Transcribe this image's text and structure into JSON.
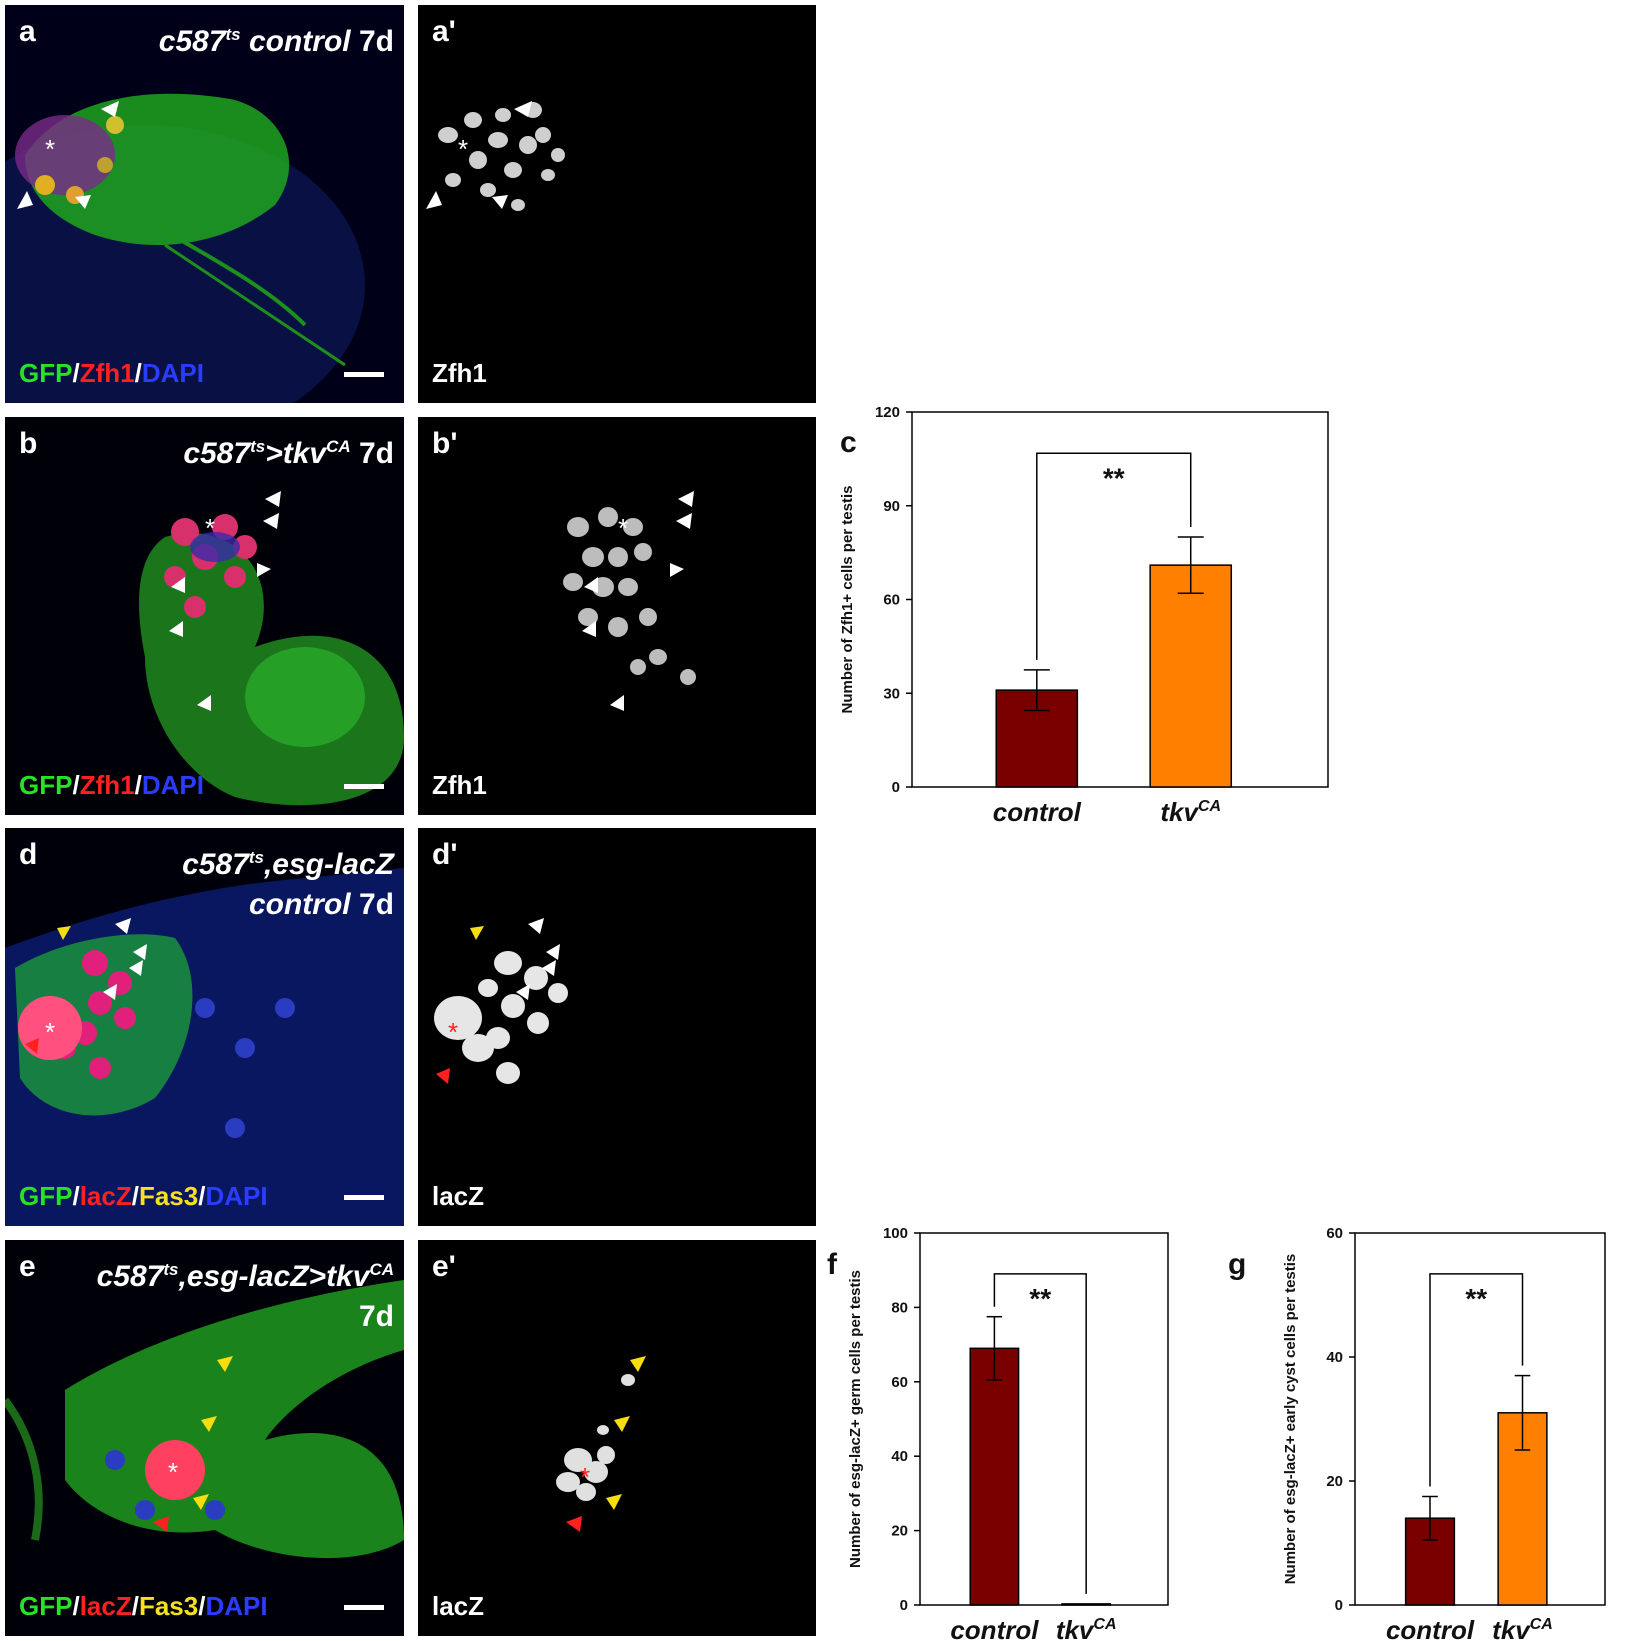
{
  "panels": {
    "a": {
      "label": "a",
      "title_italic": "c587",
      "title_sup": "ts",
      "title_rest_italic": " control",
      "title_rest": " 7d",
      "stain": [
        {
          "t": "GFP",
          "c": "g"
        },
        {
          "t": "/",
          "c": "w"
        },
        {
          "t": "Zfh1",
          "c": "r"
        },
        {
          "t": "/",
          "c": "w"
        },
        {
          "t": "DAPI",
          "c": "b"
        }
      ]
    },
    "a2": {
      "label": "a'",
      "stain": [
        {
          "t": "Zfh1",
          "c": "w"
        }
      ]
    },
    "b": {
      "label": "b",
      "title_italic": "c587",
      "title_sup": "ts",
      "title_rest_italic": ">tkv",
      "title_sup2": "CA",
      "title_rest": " 7d",
      "stain": [
        {
          "t": "GFP",
          "c": "g"
        },
        {
          "t": "/",
          "c": "w"
        },
        {
          "t": "Zfh1",
          "c": "r"
        },
        {
          "t": "/",
          "c": "w"
        },
        {
          "t": "DAPI",
          "c": "b"
        }
      ]
    },
    "b2": {
      "label": "b'",
      "stain": [
        {
          "t": "Zfh1",
          "c": "w"
        }
      ]
    },
    "d": {
      "label": "d",
      "title_line1": "c587",
      "title_sup": "ts",
      "title_line1b": ",esg-lacZ",
      "title_line2": "control",
      "title_line2b": " 7d",
      "stain": [
        {
          "t": "GFP",
          "c": "g"
        },
        {
          "t": "/",
          "c": "w"
        },
        {
          "t": "lacZ",
          "c": "r"
        },
        {
          "t": "/",
          "c": "w"
        },
        {
          "t": "Fas3",
          "c": "y"
        },
        {
          "t": "/",
          "c": "w"
        },
        {
          "t": "DAPI",
          "c": "b"
        }
      ]
    },
    "d2": {
      "label": "d'",
      "stain": [
        {
          "t": "lacZ",
          "c": "w"
        }
      ]
    },
    "e": {
      "label": "e",
      "title_line1": "c587",
      "title_sup": "ts",
      "title_line1b": ",esg-lacZ>tkv",
      "title_sup2": "CA",
      "title_line2b": "7d",
      "stain": [
        {
          "t": "GFP",
          "c": "g"
        },
        {
          "t": "/",
          "c": "w"
        },
        {
          "t": "lacZ",
          "c": "r"
        },
        {
          "t": "/",
          "c": "w"
        },
        {
          "t": "Fas3",
          "c": "y"
        },
        {
          "t": "/",
          "c": "w"
        },
        {
          "t": "DAPI",
          "c": "b"
        }
      ]
    },
    "e2": {
      "label": "e'",
      "stain": [
        {
          "t": "lacZ",
          "c": "w"
        }
      ]
    }
  },
  "chart_data": [
    {
      "id": "c",
      "panel_label": "c",
      "type": "bar",
      "categories": [
        "control",
        "tkv"
      ],
      "category_sup": [
        "",
        "CA"
      ],
      "values": [
        31,
        71
      ],
      "errors": [
        6.5,
        9
      ],
      "ylabel": "Number of Zfh1+ cells per testis",
      "ylim": [
        0,
        120
      ],
      "yticks": [
        0,
        30,
        60,
        90,
        120
      ],
      "significance": "**",
      "colors": [
        "#7a0000",
        "#ff8000"
      ]
    },
    {
      "id": "f",
      "panel_label": "f",
      "type": "bar",
      "categories": [
        "control",
        "tkv"
      ],
      "category_sup": [
        "",
        "CA"
      ],
      "values": [
        69,
        0.3
      ],
      "errors": [
        8.5,
        0
      ],
      "ylabel": "Number of esg-lacZ+ germ cells per testis",
      "ylim": [
        0,
        100
      ],
      "yticks": [
        0,
        20,
        40,
        60,
        80,
        100
      ],
      "significance": "**",
      "colors": [
        "#7a0000",
        "#ff8000"
      ]
    },
    {
      "id": "g",
      "panel_label": "g",
      "type": "bar",
      "categories": [
        "control",
        "tkv"
      ],
      "category_sup": [
        "",
        "CA"
      ],
      "values": [
        14,
        31
      ],
      "errors": [
        3.5,
        6
      ],
      "ylabel": "Number of esg-lacZ+ early cyst cells per testis",
      "ylim": [
        0,
        60
      ],
      "yticks": [
        0,
        20,
        40,
        60
      ],
      "significance": "**",
      "colors": [
        "#7a0000",
        "#ff8000"
      ]
    }
  ]
}
